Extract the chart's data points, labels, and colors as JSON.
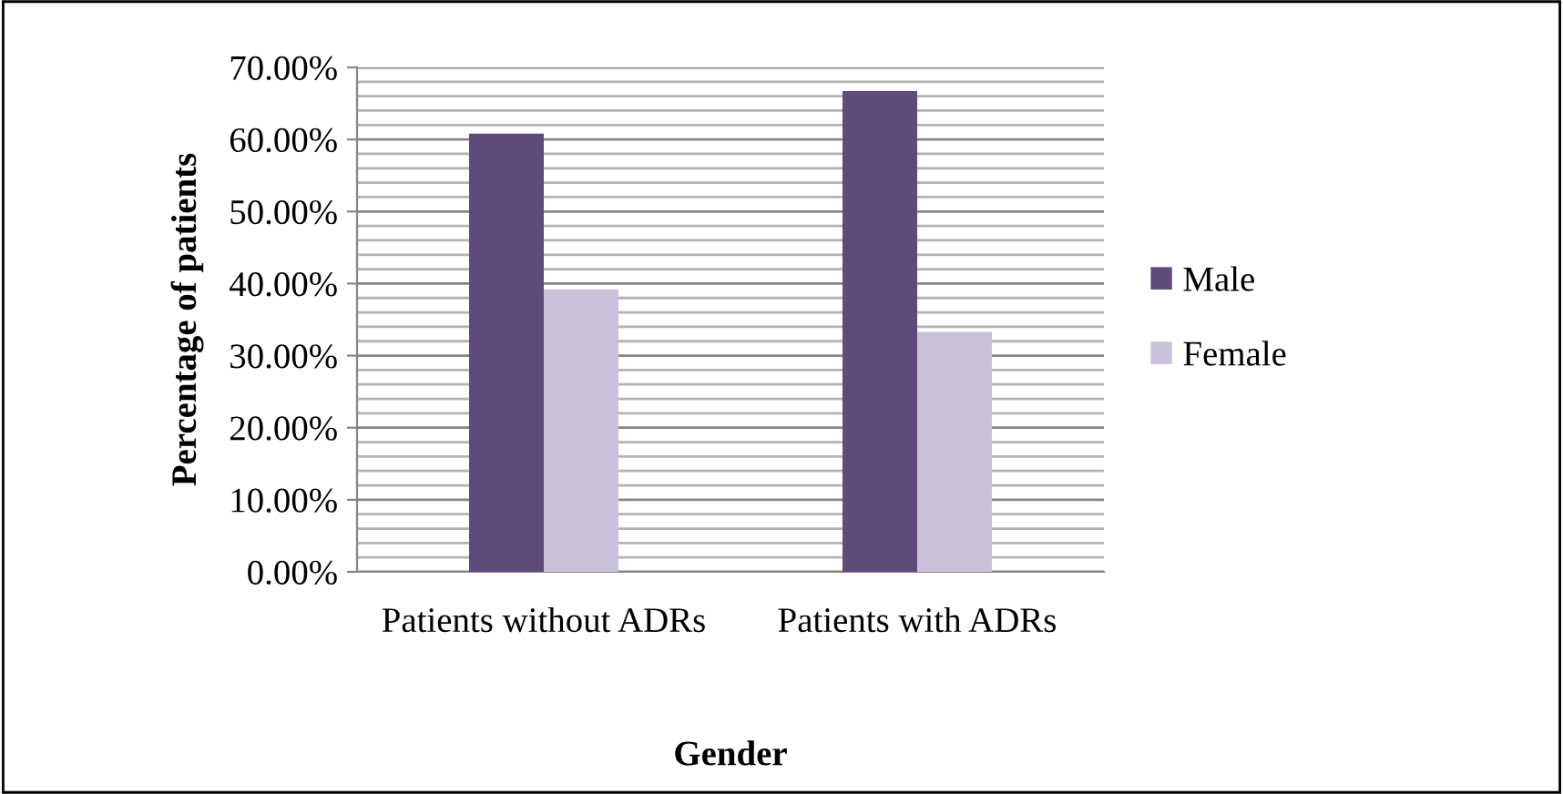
{
  "chart_data": {
    "type": "bar",
    "xlabel": "Gender",
    "ylabel": "Percentage of patients",
    "categories": [
      "Patients without ADRs",
      "Patients with ADRs"
    ],
    "series": [
      {
        "name": "Male",
        "color": "#604a7b",
        "values": [
          60.8,
          66.7
        ]
      },
      {
        "name": "Female",
        "color": "#ccc1da",
        "values": [
          39.2,
          33.3
        ]
      }
    ],
    "ylim": [
      0,
      70
    ],
    "yticks": [
      {
        "value": 0,
        "label": "0.00%"
      },
      {
        "value": 2,
        "label": null
      },
      {
        "value": 4,
        "label": null
      },
      {
        "value": 6,
        "label": null
      },
      {
        "value": 8,
        "label": null
      },
      {
        "value": 10,
        "label": "10.00%"
      },
      {
        "value": 12,
        "label": null
      },
      {
        "value": 14,
        "label": null
      },
      {
        "value": 16,
        "label": null
      },
      {
        "value": 18,
        "label": null
      },
      {
        "value": 20,
        "label": "20.00%"
      },
      {
        "value": 22,
        "label": null
      },
      {
        "value": 24,
        "label": null
      },
      {
        "value": 26,
        "label": null
      },
      {
        "value": 28,
        "label": null
      },
      {
        "value": 30,
        "label": "30.00%"
      },
      {
        "value": 32,
        "label": null
      },
      {
        "value": 34,
        "label": null
      },
      {
        "value": 36,
        "label": null
      },
      {
        "value": 38,
        "label": null
      },
      {
        "value": 40,
        "label": "40.00%"
      },
      {
        "value": 42,
        "label": null
      },
      {
        "value": 44,
        "label": null
      },
      {
        "value": 46,
        "label": null
      },
      {
        "value": 48,
        "label": null
      },
      {
        "value": 50,
        "label": "50.00%"
      },
      {
        "value": 52,
        "label": null
      },
      {
        "value": 54,
        "label": null
      },
      {
        "value": 56,
        "label": null
      },
      {
        "value": 58,
        "label": null
      },
      {
        "value": 60,
        "label": "60.00%"
      },
      {
        "value": 62,
        "label": null
      },
      {
        "value": 64,
        "label": null
      },
      {
        "value": 66,
        "label": null
      },
      {
        "value": 68,
        "label": null
      },
      {
        "value": 70,
        "label": "70.00%"
      }
    ],
    "grid": "y",
    "legend": "right"
  }
}
